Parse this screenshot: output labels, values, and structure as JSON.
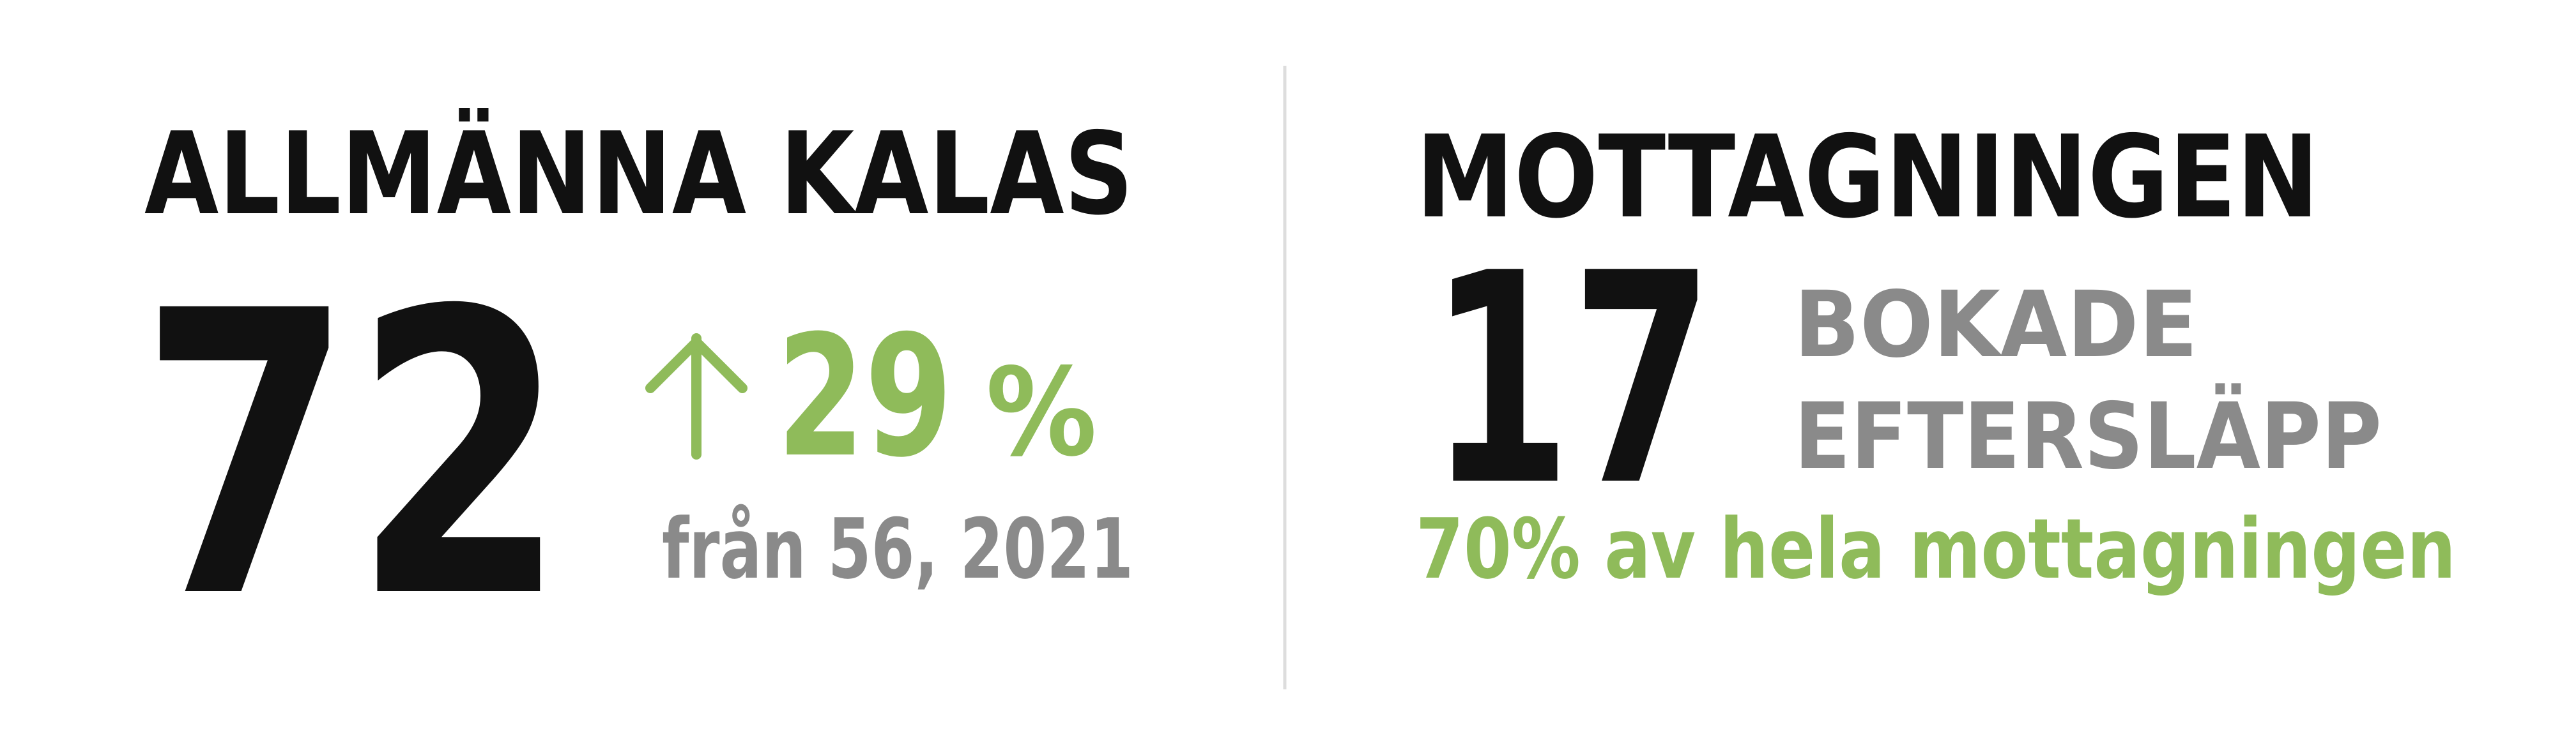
{
  "left": {
    "title": "ALLMÄNNA KALAS",
    "value": "72",
    "change_value": "29",
    "change_unit": "%",
    "comparison": "från 56, 2021"
  },
  "right": {
    "title": "MOTTAGNINGEN",
    "value": "17",
    "label_line1": "BOKADE",
    "label_line2": "EFTERSLÄPP",
    "note": "70% av hela mottagningen"
  }
}
